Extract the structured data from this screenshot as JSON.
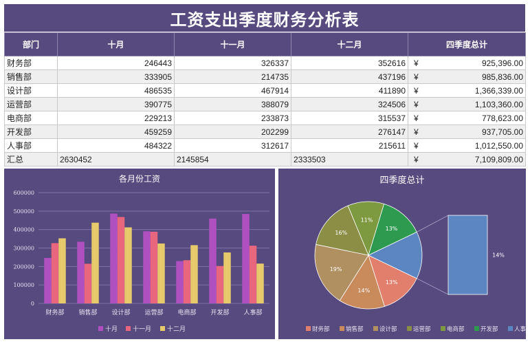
{
  "title": "工资支出季度财务分析表",
  "table": {
    "headers": [
      "部门",
      "十月",
      "十一月",
      "十二月",
      "四季度总计"
    ],
    "currency_symbol": "¥",
    "rows": [
      {
        "dept": "财务部",
        "oct": "246443",
        "nov": "326337",
        "dec": "352616",
        "total": "925,396.00"
      },
      {
        "dept": "销售部",
        "oct": "333905",
        "nov": "214735",
        "dec": "437196",
        "total": "985,836.00"
      },
      {
        "dept": "设计部",
        "oct": "486535",
        "nov": "467914",
        "dec": "411890",
        "total": "1,366,339.00"
      },
      {
        "dept": "运营部",
        "oct": "390775",
        "nov": "388079",
        "dec": "324506",
        "total": "1,103,360.00"
      },
      {
        "dept": "电商部",
        "oct": "229213",
        "nov": "233873",
        "dec": "315537",
        "total": "778,623.00"
      },
      {
        "dept": "开发部",
        "oct": "459259",
        "nov": "202299",
        "dec": "276147",
        "total": "937,705.00"
      },
      {
        "dept": "人事部",
        "oct": "484322",
        "nov": "312617",
        "dec": "215611",
        "total": "1,012,550.00"
      }
    ],
    "summary": {
      "dept": "汇总",
      "oct": "2630452",
      "nov": "2145854",
      "dec": "2333503",
      "total": "7,109,809.00"
    }
  },
  "chart_data": [
    {
      "type": "bar",
      "title": "各月份工资",
      "categories": [
        "财务部",
        "销售部",
        "设计部",
        "运营部",
        "电商部",
        "开发部",
        "人事部"
      ],
      "series": [
        {
          "name": "十月",
          "color": "#b04fc0",
          "values": [
            246443,
            333905,
            486535,
            390775,
            229213,
            459259,
            484322
          ]
        },
        {
          "name": "十一月",
          "color": "#e8667e",
          "values": [
            326337,
            214735,
            467914,
            388079,
            233873,
            202299,
            312617
          ]
        },
        {
          "name": "十二月",
          "color": "#e6ca6c",
          "values": [
            352616,
            437196,
            411890,
            324506,
            315537,
            276147,
            215611
          ]
        }
      ],
      "ylim": [
        0,
        600000
      ],
      "yticks": [
        "0",
        "100000",
        "200000",
        "300000",
        "400000",
        "500000",
        "600000"
      ],
      "grid": true,
      "legend": "bottom"
    },
    {
      "type": "pie",
      "title": "四季度总计",
      "subtype": "pie-of-pie",
      "labels": [
        "财务部",
        "销售部",
        "设计部",
        "运营部",
        "电商部",
        "开发部",
        "人事部"
      ],
      "values": [
        925396,
        985836,
        1366339,
        1103360,
        778623,
        937705,
        1012550
      ],
      "colors": [
        "#e27f6c",
        "#c98a5c",
        "#b09060",
        "#8a8f45",
        "#7e9a40",
        "#2e9a50",
        "#5b86c2"
      ],
      "slice_labels": [
        "13%",
        "14%",
        "19%",
        "16%",
        "11%",
        "13%",
        "14%"
      ],
      "secondary_label": "14%",
      "legend": "bottom"
    }
  ]
}
